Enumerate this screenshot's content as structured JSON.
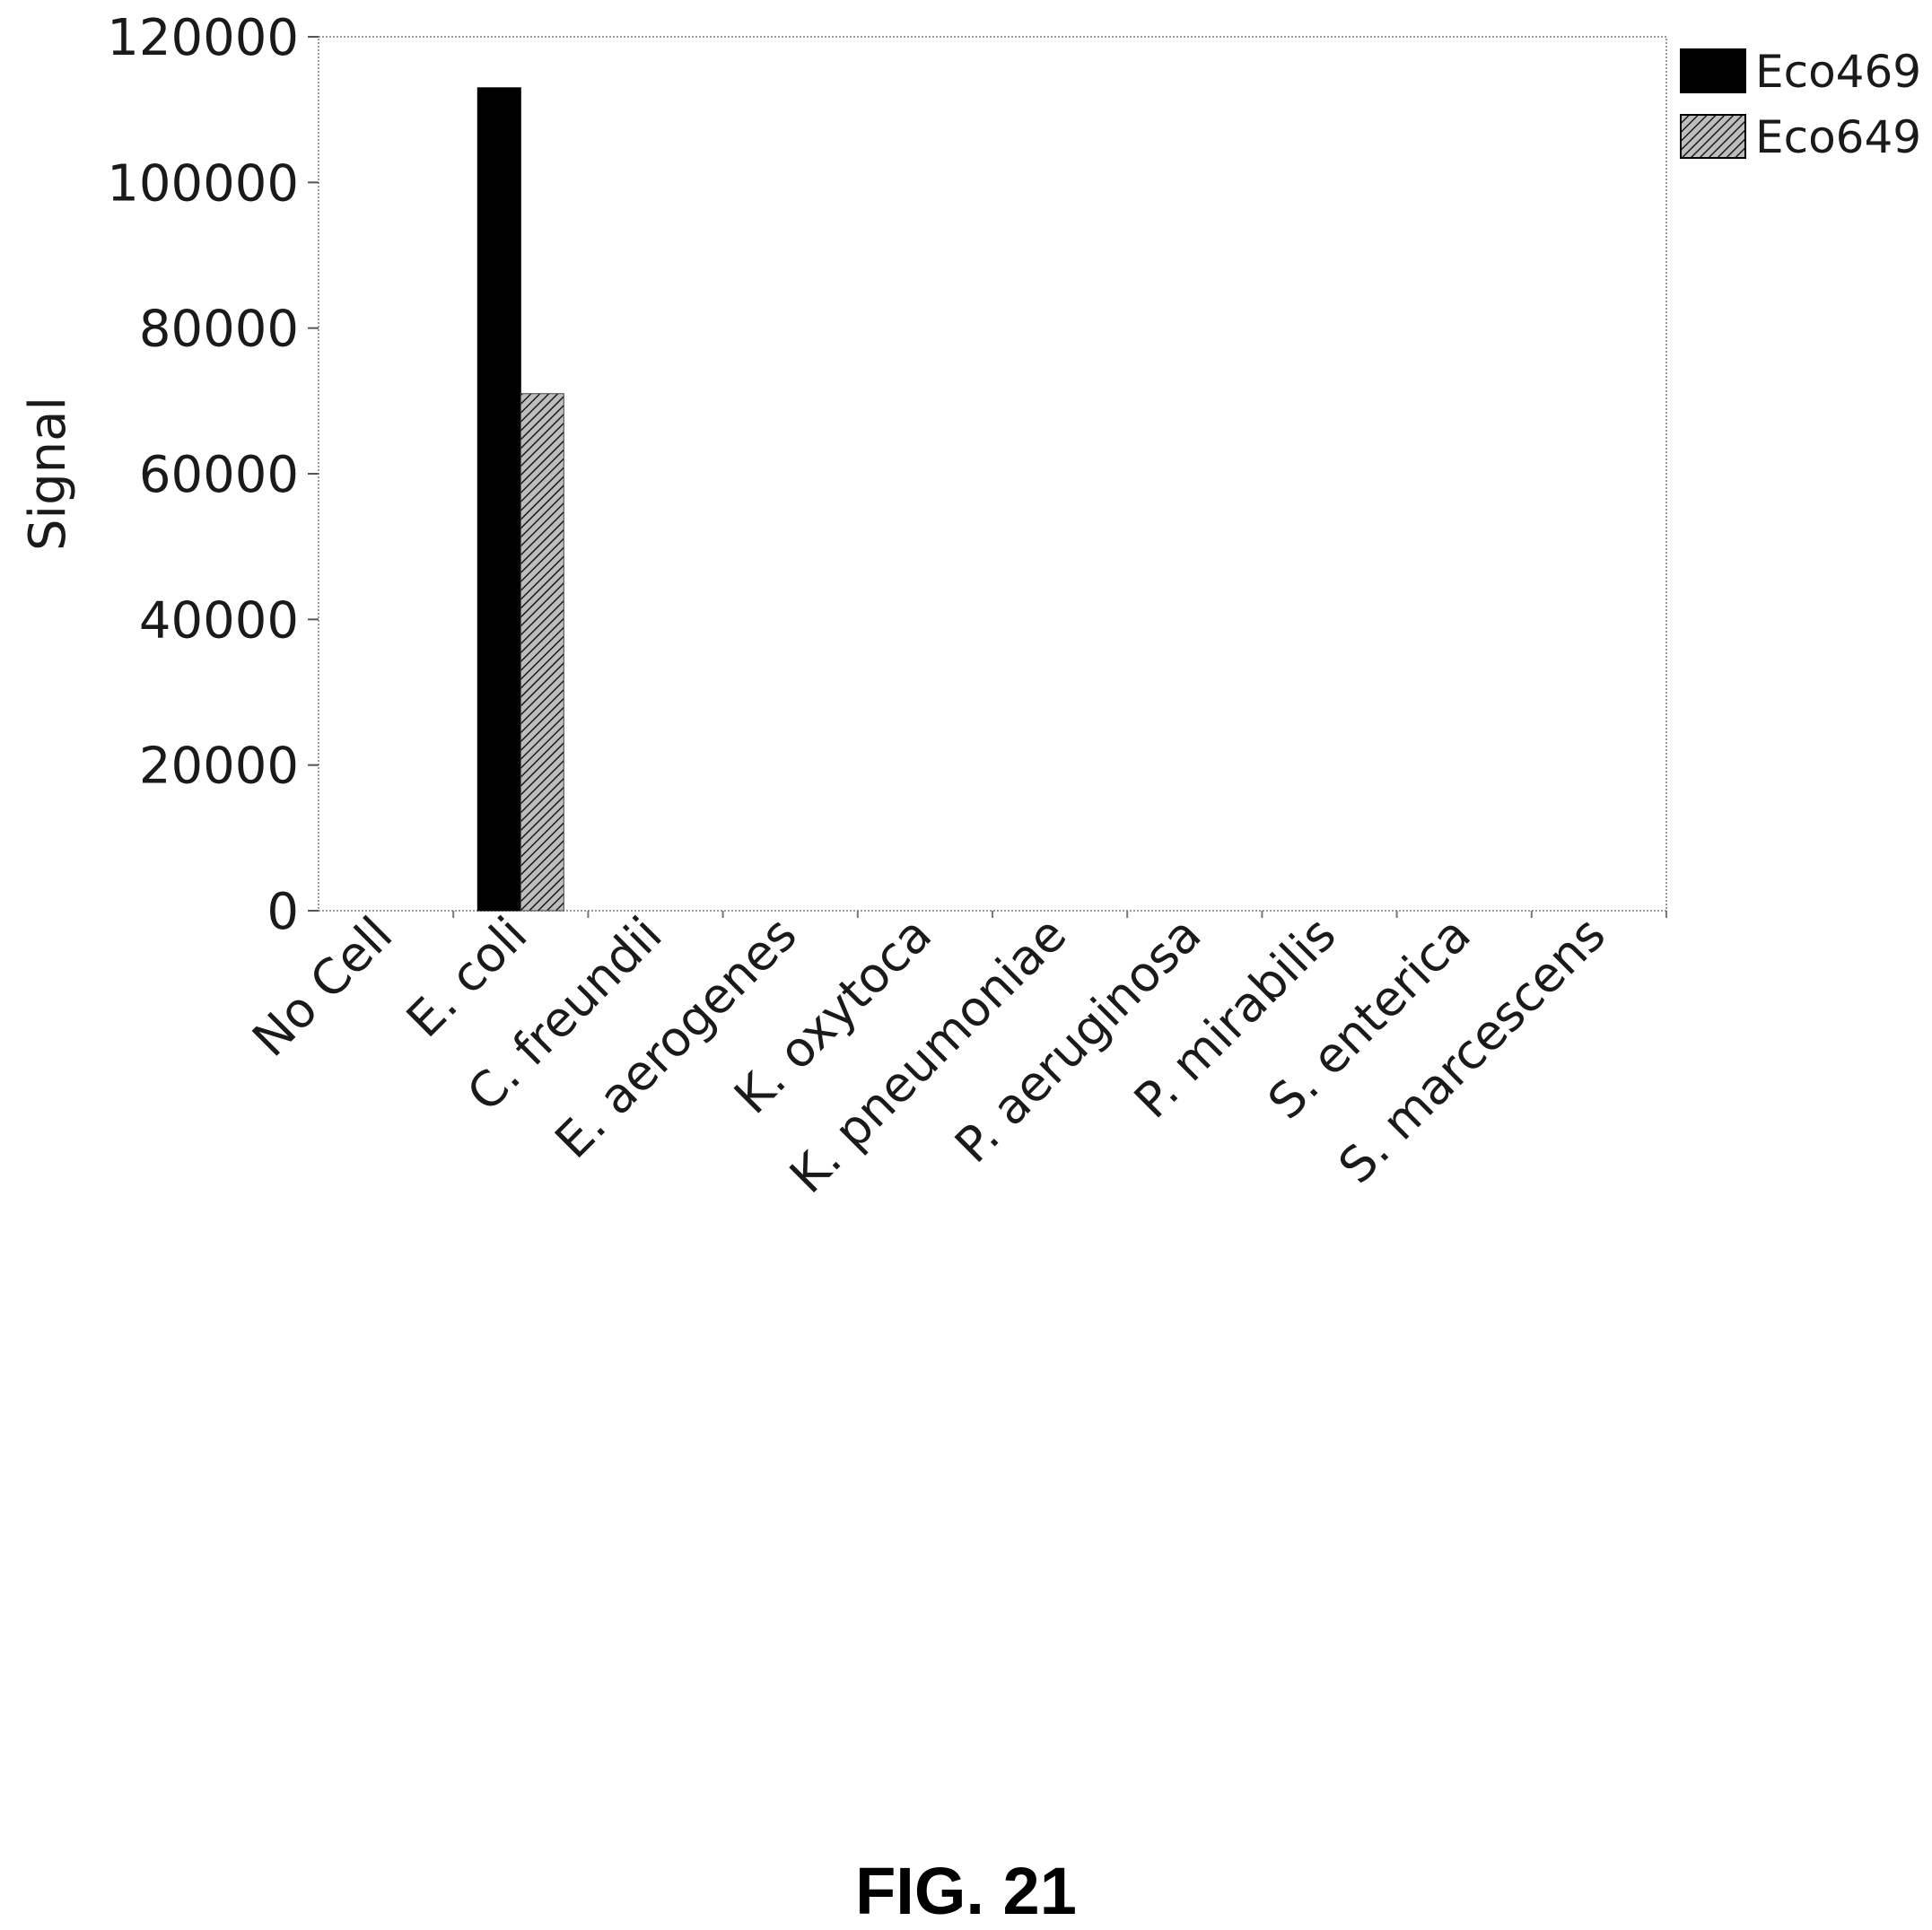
{
  "chart_data": {
    "type": "bar",
    "categories": [
      "No Cell",
      "E. coli",
      "C. freundii",
      "E. aerogenes",
      "K. oxytoca",
      "K. pneumoniae",
      "P. aeruginosa",
      "P. mirabilis",
      "S. enterica",
      "S. marcescens"
    ],
    "series": [
      {
        "name": "Eco469",
        "values": [
          0,
          113000,
          0,
          0,
          0,
          0,
          0,
          0,
          0,
          0
        ],
        "color": "#000000",
        "pattern": "solid"
      },
      {
        "name": "Eco649",
        "values": [
          0,
          71000,
          0,
          0,
          0,
          0,
          0,
          0,
          0,
          0
        ],
        "color": "#808080",
        "pattern": "hatched"
      }
    ],
    "ylabel": "Signal",
    "xlabel": "",
    "ylim": [
      0,
      120000
    ],
    "yticks": [
      0,
      20000,
      40000,
      60000,
      80000,
      100000,
      120000
    ],
    "ytick_labels": [
      "0",
      "20000",
      "40000",
      "60000",
      "80000",
      "100000",
      "120000"
    ],
    "legend_position": "top-right",
    "grid": false
  },
  "caption": "FIG. 21"
}
